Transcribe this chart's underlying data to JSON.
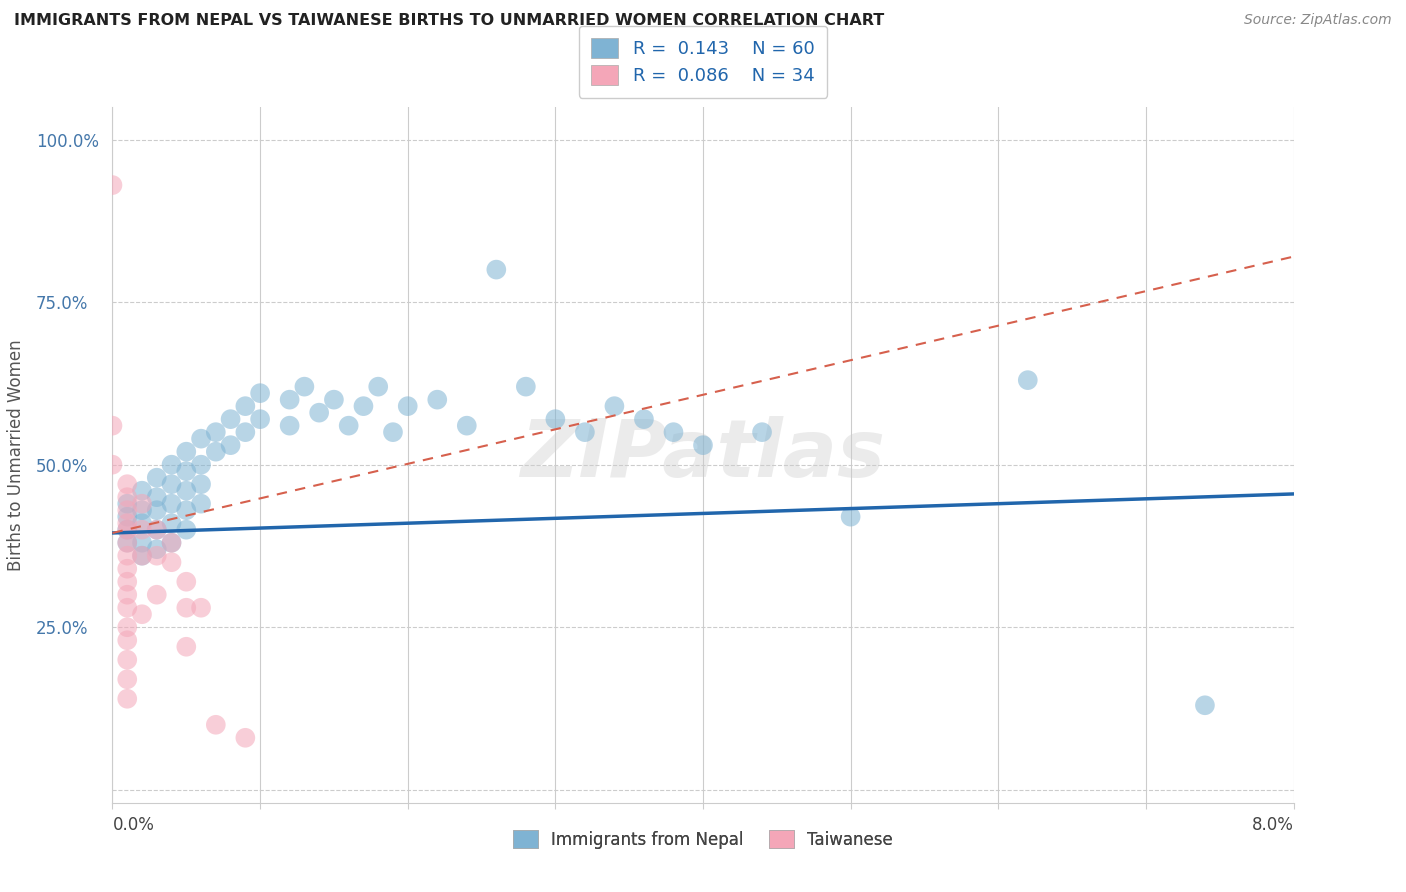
{
  "title": "IMMIGRANTS FROM NEPAL VS TAIWANESE BIRTHS TO UNMARRIED WOMEN CORRELATION CHART",
  "source": "Source: ZipAtlas.com",
  "ylabel": "Births to Unmarried Women",
  "xmin": 0.0,
  "xmax": 0.08,
  "ymin": 0.0,
  "ymax": 1.05,
  "legend_r1": "R =  0.143",
  "legend_n1": "N = 60",
  "legend_r2": "R =  0.086",
  "legend_n2": "N = 34",
  "blue_color": "#7fb3d3",
  "pink_color": "#f4a6b8",
  "trend_blue": "#2166ac",
  "trend_pink": "#d6604d",
  "blue_scatter": [
    [
      0.001,
      0.44
    ],
    [
      0.001,
      0.42
    ],
    [
      0.001,
      0.4
    ],
    [
      0.001,
      0.38
    ],
    [
      0.002,
      0.46
    ],
    [
      0.002,
      0.43
    ],
    [
      0.002,
      0.41
    ],
    [
      0.002,
      0.38
    ],
    [
      0.002,
      0.36
    ],
    [
      0.003,
      0.48
    ],
    [
      0.003,
      0.45
    ],
    [
      0.003,
      0.43
    ],
    [
      0.003,
      0.4
    ],
    [
      0.003,
      0.37
    ],
    [
      0.004,
      0.5
    ],
    [
      0.004,
      0.47
    ],
    [
      0.004,
      0.44
    ],
    [
      0.004,
      0.41
    ],
    [
      0.004,
      0.38
    ],
    [
      0.005,
      0.52
    ],
    [
      0.005,
      0.49
    ],
    [
      0.005,
      0.46
    ],
    [
      0.005,
      0.43
    ],
    [
      0.005,
      0.4
    ],
    [
      0.006,
      0.54
    ],
    [
      0.006,
      0.5
    ],
    [
      0.006,
      0.47
    ],
    [
      0.006,
      0.44
    ],
    [
      0.007,
      0.55
    ],
    [
      0.007,
      0.52
    ],
    [
      0.008,
      0.57
    ],
    [
      0.008,
      0.53
    ],
    [
      0.009,
      0.59
    ],
    [
      0.009,
      0.55
    ],
    [
      0.01,
      0.61
    ],
    [
      0.01,
      0.57
    ],
    [
      0.012,
      0.6
    ],
    [
      0.012,
      0.56
    ],
    [
      0.013,
      0.62
    ],
    [
      0.014,
      0.58
    ],
    [
      0.015,
      0.6
    ],
    [
      0.016,
      0.56
    ],
    [
      0.017,
      0.59
    ],
    [
      0.018,
      0.62
    ],
    [
      0.019,
      0.55
    ],
    [
      0.02,
      0.59
    ],
    [
      0.022,
      0.6
    ],
    [
      0.024,
      0.56
    ],
    [
      0.026,
      0.8
    ],
    [
      0.028,
      0.62
    ],
    [
      0.03,
      0.57
    ],
    [
      0.032,
      0.55
    ],
    [
      0.034,
      0.59
    ],
    [
      0.036,
      0.57
    ],
    [
      0.038,
      0.55
    ],
    [
      0.04,
      0.53
    ],
    [
      0.044,
      0.55
    ],
    [
      0.05,
      0.42
    ],
    [
      0.062,
      0.63
    ],
    [
      0.074,
      0.13
    ]
  ],
  "pink_scatter": [
    [
      0.0,
      0.93
    ],
    [
      0.0,
      0.56
    ],
    [
      0.0,
      0.5
    ],
    [
      0.001,
      0.47
    ],
    [
      0.001,
      0.45
    ],
    [
      0.001,
      0.43
    ],
    [
      0.001,
      0.41
    ],
    [
      0.001,
      0.4
    ],
    [
      0.001,
      0.38
    ],
    [
      0.001,
      0.36
    ],
    [
      0.001,
      0.34
    ],
    [
      0.001,
      0.32
    ],
    [
      0.001,
      0.3
    ],
    [
      0.001,
      0.28
    ],
    [
      0.001,
      0.25
    ],
    [
      0.001,
      0.23
    ],
    [
      0.001,
      0.2
    ],
    [
      0.001,
      0.17
    ],
    [
      0.001,
      0.14
    ],
    [
      0.002,
      0.44
    ],
    [
      0.002,
      0.4
    ],
    [
      0.002,
      0.36
    ],
    [
      0.002,
      0.27
    ],
    [
      0.003,
      0.4
    ],
    [
      0.003,
      0.36
    ],
    [
      0.003,
      0.3
    ],
    [
      0.004,
      0.38
    ],
    [
      0.004,
      0.35
    ],
    [
      0.005,
      0.32
    ],
    [
      0.005,
      0.28
    ],
    [
      0.005,
      0.22
    ],
    [
      0.006,
      0.28
    ],
    [
      0.007,
      0.1
    ],
    [
      0.009,
      0.08
    ]
  ],
  "blue_trend_x": [
    0.0,
    0.08
  ],
  "blue_trend_y": [
    0.395,
    0.455
  ],
  "pink_trend_x": [
    0.0,
    0.08
  ],
  "pink_trend_y": [
    0.395,
    0.82
  ]
}
